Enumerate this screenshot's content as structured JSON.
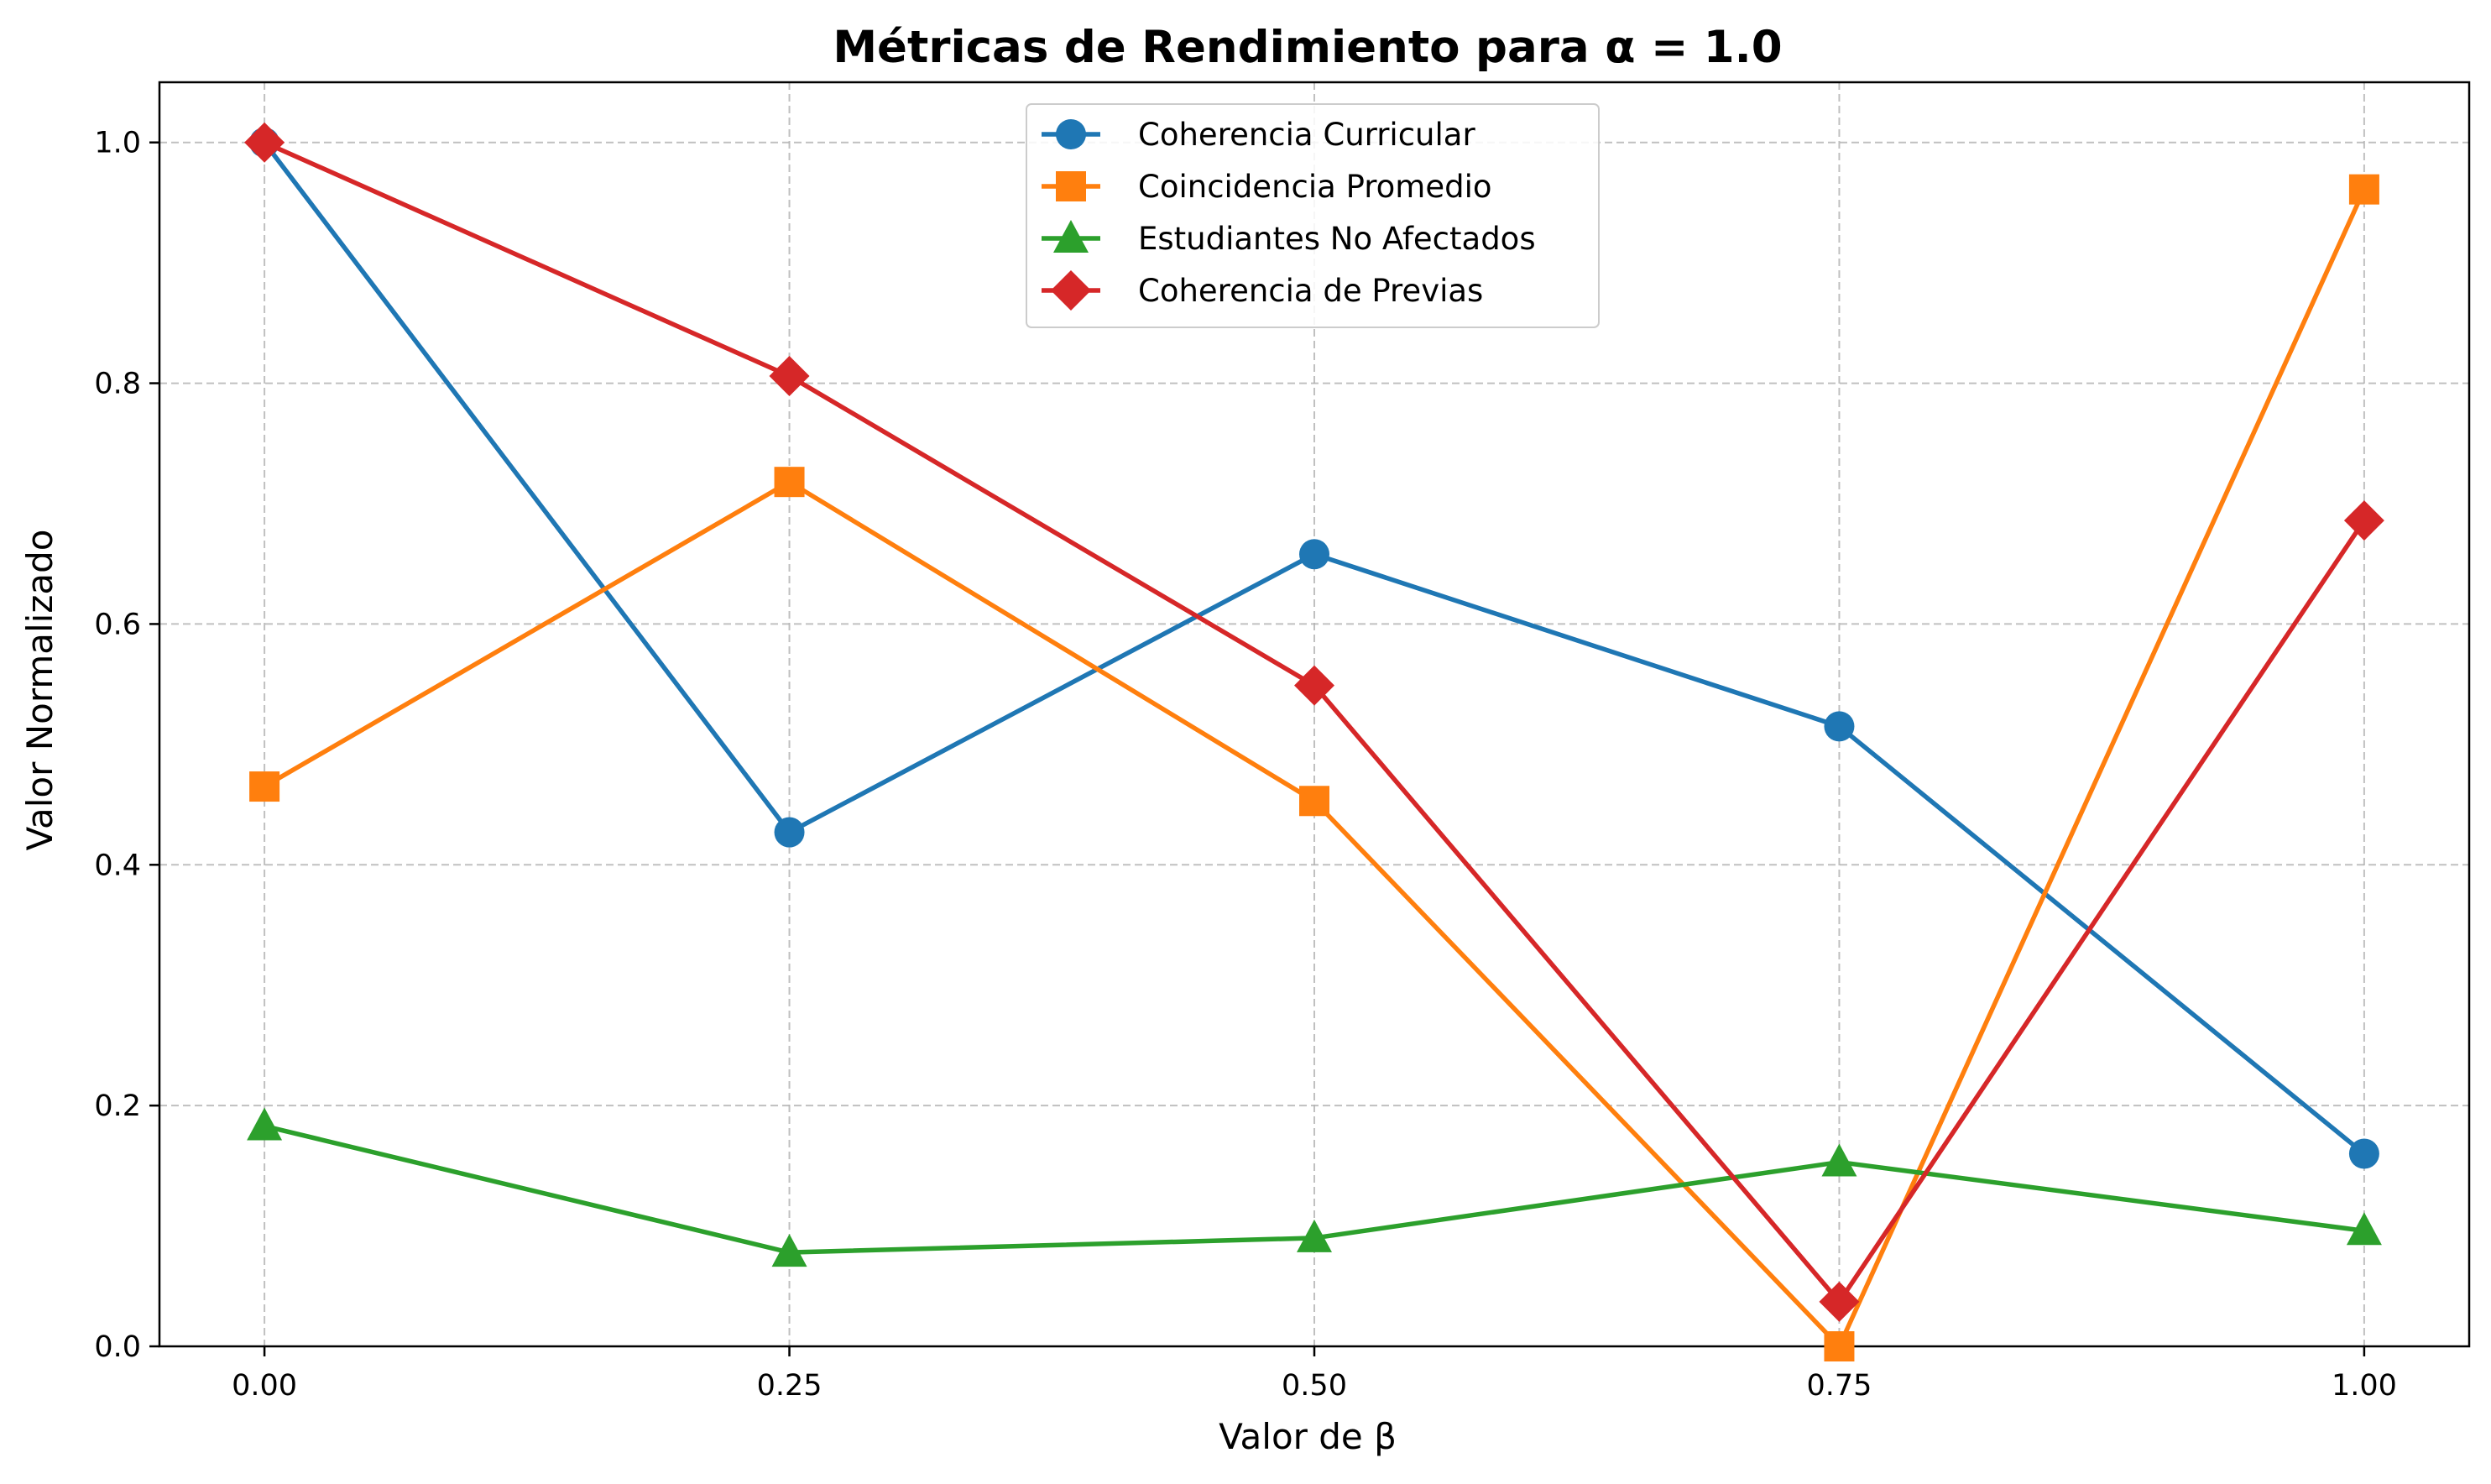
{
  "chart_data": {
    "type": "line",
    "title": "Métricas de Rendimiento para α = 1.0",
    "xlabel": "Valor de β",
    "ylabel": "Valor Normalizado",
    "x": [
      0.0,
      0.25,
      0.5,
      0.75,
      1.0
    ],
    "x_tick_labels": [
      "0.00",
      "0.25",
      "0.50",
      "0.75",
      "1.00"
    ],
    "y_tick_labels": [
      "0.0",
      "0.2",
      "0.4",
      "0.6",
      "0.8",
      "1.0"
    ],
    "y_ticks": [
      0.0,
      0.2,
      0.4,
      0.6,
      0.8,
      1.0
    ],
    "xlim": [
      -0.05,
      1.05
    ],
    "ylim": [
      0.0,
      1.05
    ],
    "grid": true,
    "legend_position": "top-center",
    "series": [
      {
        "name": "Coherencia Curricular",
        "marker": "circle",
        "color": "#1f77b4",
        "values": [
          1.0,
          0.427,
          0.658,
          0.515,
          0.16
        ]
      },
      {
        "name": "Coincidencia Promedio",
        "marker": "square",
        "color": "#ff7f0e",
        "values": [
          0.465,
          0.718,
          0.453,
          0.0,
          0.961
        ]
      },
      {
        "name": "Estudiantes No Afectados",
        "marker": "triangle",
        "color": "#2ca02c",
        "values": [
          0.183,
          0.078,
          0.09,
          0.153,
          0.096
        ]
      },
      {
        "name": "Coherencia de Previas",
        "marker": "diamond",
        "color": "#d62728",
        "values": [
          1.0,
          0.806,
          0.549,
          0.037,
          0.686
        ]
      }
    ]
  }
}
